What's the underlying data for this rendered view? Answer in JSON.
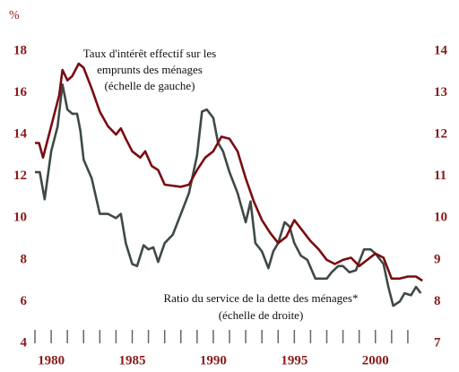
{
  "chart_data": {
    "type": "line",
    "y_unit": "%",
    "annotations": [
      "Taux d'intérêt effectif sur les",
      "emprunts des ménages",
      "(échelle de gauche)",
      "Ratio du service de la dette des ménages*",
      "(échelle de droite)"
    ],
    "xlim": [
      1979,
      2003
    ],
    "xticks": [
      1980,
      1985,
      1990,
      1995,
      2000
    ],
    "xminorticks": [
      1979,
      1980,
      1981,
      1982,
      1983,
      1984,
      1985,
      1986,
      1987,
      1988,
      1989,
      1990,
      1991,
      1992,
      1993,
      1994,
      1995,
      1996,
      1997,
      1998,
      1999,
      2000,
      2001,
      2002
    ],
    "ylim": [
      4,
      18
    ],
    "yticks": [
      4,
      6,
      8,
      10,
      12,
      14,
      16,
      18
    ],
    "y2lim": [
      7,
      14
    ],
    "y2ticks": [
      7,
      8,
      9,
      10,
      11,
      12,
      13,
      14
    ],
    "series": [
      {
        "color": "#7a0c10",
        "axis": "y",
        "x": [
          1979.0,
          1979.25,
          1979.5,
          1980.0,
          1980.5,
          1980.7,
          1981.0,
          1981.3,
          1981.7,
          1982.0,
          1982.5,
          1983.0,
          1983.5,
          1984.0,
          1984.3,
          1984.6,
          1985.0,
          1985.5,
          1985.8,
          1986.2,
          1986.6,
          1987.0,
          1988.0,
          1988.5,
          1989.0,
          1989.5,
          1990.0,
          1990.5,
          1991.0,
          1991.5,
          1992.0,
          1992.5,
          1993.0,
          1993.5,
          1994.0,
          1994.5,
          1995.0,
          1995.5,
          1996.0,
          1996.5,
          1997.0,
          1997.5,
          1998.0,
          1998.5,
          1999.0,
          1999.5,
          2000.0,
          2000.5,
          2001.0,
          2001.5,
          2002.0,
          2002.5,
          2002.9
        ],
        "values": [
          13.6,
          13.6,
          12.9,
          14.4,
          15.9,
          17.1,
          16.6,
          16.8,
          17.4,
          17.2,
          16.2,
          15.1,
          14.4,
          14.0,
          14.3,
          13.8,
          13.2,
          12.9,
          13.2,
          12.5,
          12.3,
          11.6,
          11.5,
          11.6,
          12.3,
          12.9,
          13.2,
          13.9,
          13.8,
          13.2,
          11.9,
          10.8,
          9.9,
          9.3,
          8.8,
          9.1,
          9.9,
          9.4,
          8.9,
          8.5,
          8.0,
          7.8,
          8.0,
          8.1,
          7.7,
          8.0,
          8.3,
          8.1,
          7.1,
          7.1,
          7.2,
          7.2,
          7.0
        ]
      },
      {
        "color": "#3e4a46",
        "axis": "y2",
        "x": [
          1979.0,
          1979.3,
          1979.6,
          1980.0,
          1980.4,
          1980.7,
          1981.0,
          1981.3,
          1981.6,
          1981.8,
          1982.0,
          1982.5,
          1983.0,
          1983.5,
          1984.0,
          1984.3,
          1984.6,
          1985.0,
          1985.3,
          1985.7,
          1986.0,
          1986.3,
          1986.6,
          1987.0,
          1987.5,
          1988.0,
          1988.5,
          1989.0,
          1989.3,
          1989.6,
          1990.0,
          1990.3,
          1990.6,
          1991.0,
          1991.5,
          1992.0,
          1992.3,
          1992.6,
          1993.0,
          1993.4,
          1993.7,
          1994.0,
          1994.4,
          1994.7,
          1995.0,
          1995.4,
          1995.8,
          1996.3,
          1997.0,
          1997.3,
          1997.7,
          1998.0,
          1998.4,
          1998.8,
          1999.3,
          1999.7,
          2000.0,
          2000.5,
          2000.8,
          2001.1,
          2001.5,
          2001.8,
          2002.2,
          2002.5,
          2002.8
        ],
        "values": [
          11.1,
          11.1,
          10.45,
          11.6,
          12.2,
          13.2,
          12.6,
          12.5,
          12.5,
          12.1,
          11.4,
          10.95,
          10.1,
          10.1,
          10.0,
          10.1,
          9.4,
          8.9,
          8.85,
          9.35,
          9.25,
          9.3,
          8.95,
          9.4,
          9.6,
          10.1,
          10.6,
          11.5,
          12.55,
          12.6,
          12.4,
          11.8,
          11.6,
          11.1,
          10.6,
          9.9,
          10.4,
          9.4,
          9.2,
          8.8,
          9.2,
          9.4,
          9.9,
          9.8,
          9.4,
          9.1,
          9.0,
          8.55,
          8.55,
          8.7,
          8.85,
          8.85,
          8.7,
          8.75,
          9.25,
          9.25,
          9.15,
          8.9,
          8.35,
          7.9,
          8.0,
          8.2,
          8.15,
          8.35,
          8.2
        ]
      }
    ]
  }
}
